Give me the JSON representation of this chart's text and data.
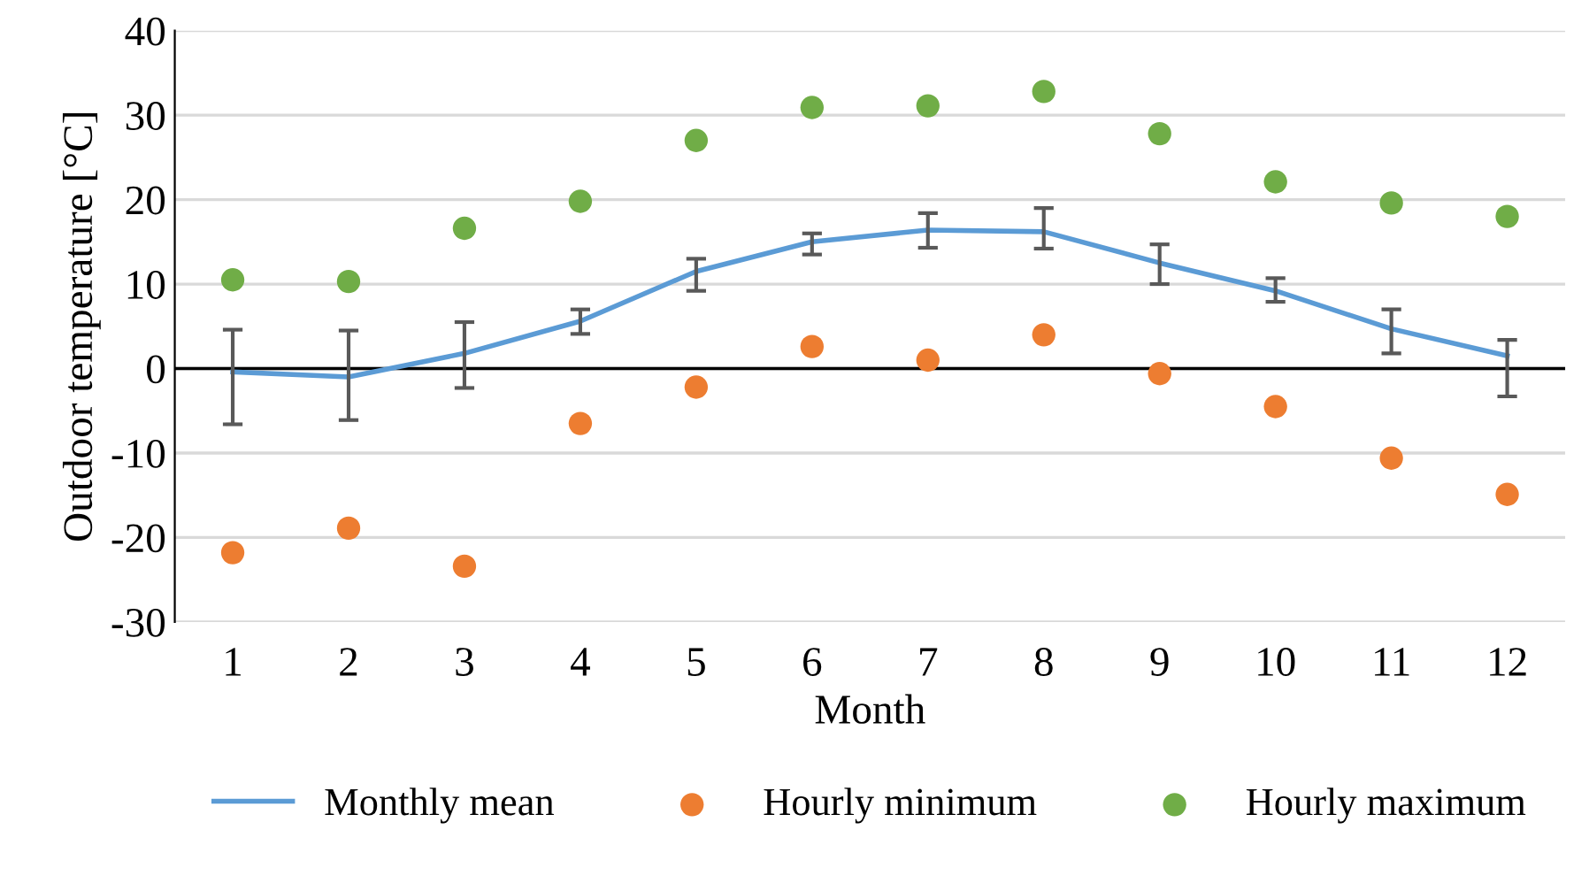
{
  "chart_data": {
    "type": "line",
    "xlabel": "Month",
    "ylabel": "Outdoor temperature [°C]",
    "categories": [
      "1",
      "2",
      "3",
      "4",
      "5",
      "6",
      "7",
      "8",
      "9",
      "10",
      "11",
      "12"
    ],
    "series": [
      {
        "name": "Monthly mean",
        "color": "#5b9bd5",
        "values": [
          -0.4,
          -1.0,
          1.8,
          5.6,
          11.5,
          15.0,
          16.4,
          16.2,
          12.5,
          9.2,
          4.7,
          1.5
        ],
        "errors": [
          [
            -6.6,
            4.6
          ],
          [
            -6.1,
            4.5
          ],
          [
            -2.3,
            5.5
          ],
          [
            4.1,
            7.0
          ],
          [
            9.2,
            13.0
          ],
          [
            13.5,
            16.0
          ],
          [
            14.3,
            18.4
          ],
          [
            14.2,
            19.0
          ],
          [
            10.0,
            14.7
          ],
          [
            7.9,
            10.7
          ],
          [
            1.8,
            7.0
          ],
          [
            -3.3,
            3.4
          ]
        ]
      },
      {
        "name": "Hourly minimum",
        "type": "scatter",
        "color": "#ed7d31",
        "marker": "circle",
        "values": [
          -21.8,
          -18.9,
          -23.4,
          -6.5,
          -2.2,
          2.6,
          1.0,
          4.0,
          -0.6,
          -4.5,
          -10.6,
          -14.9
        ]
      },
      {
        "name": "Hourly maximum",
        "type": "scatter",
        "color": "#70ad47",
        "marker": "circle",
        "values": [
          10.5,
          10.3,
          16.6,
          19.8,
          27.0,
          30.9,
          31.1,
          32.8,
          27.8,
          22.1,
          19.6,
          18.0
        ]
      }
    ],
    "ylim": [
      -30,
      40
    ],
    "yticks": [
      -30,
      -20,
      -10,
      0,
      10,
      20,
      30,
      40
    ],
    "ref_lines": [
      {
        "axis": "y",
        "value": 0,
        "color": "#000000"
      }
    ],
    "grid": "y",
    "legend": "bottom"
  }
}
